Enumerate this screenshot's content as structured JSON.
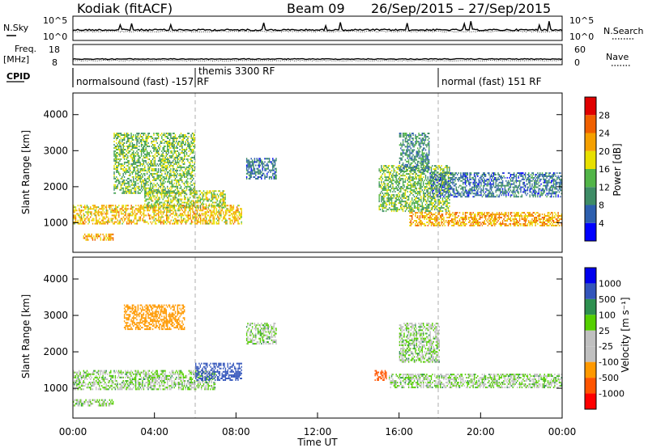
{
  "header": {
    "station": "Kodiak (fitACF)",
    "beam": "Beam 09",
    "dates": "26/Sep/2015 – 27/Sep/2015"
  },
  "strip_labels": {
    "nsky": "N.Sky",
    "nsky_ticks": [
      "10^5",
      "10^0"
    ],
    "nsearch": "N.Search",
    "nsearch_ticks": [
      "10^5",
      "10^0"
    ],
    "freq": "Freq.",
    "freq_unit": "[MHz]",
    "freq_ticks": [
      "18",
      "8"
    ],
    "nave": "Nave",
    "nave_ticks": [
      "60",
      "0"
    ],
    "cpid": "CPID",
    "cpid_segments": [
      {
        "label": "normalsound (fast) -157 RF"
      },
      {
        "label": "themis 3300 RF"
      },
      {
        "label": "normal (fast) 151 RF"
      }
    ]
  },
  "colors": {
    "power_scale": [
      "#0000ff",
      "#2d5fae",
      "#3e8c66",
      "#52b548",
      "#e8e000",
      "#f5a000",
      "#f06000",
      "#e00000"
    ],
    "velocity_scale": [
      "#ff0000",
      "#ff5500",
      "#ff9900",
      "#c0c0c0",
      "#c0c0c0",
      "#55d000",
      "#2e9050",
      "#3355bb",
      "#0000ee"
    ]
  },
  "chart_data": [
    {
      "type": "heatmap",
      "panel": "power",
      "xlabel": "",
      "ylabel": "Slant Range [km]",
      "xlim": [
        0,
        24
      ],
      "ylim": [
        180,
        4600
      ],
      "yticks": [
        "1000",
        "2000",
        "3000",
        "4000"
      ],
      "colorbar_label": "Power [dB]",
      "colorbar_ticks": [
        "4",
        "8",
        "12",
        "16",
        "20",
        "24",
        "28"
      ],
      "colorbar_range": [
        0,
        32
      ],
      "echo_regions": [
        {
          "t0": 0.0,
          "t1": 8.3,
          "r0": 950,
          "r1": 1500,
          "power": 20
        },
        {
          "t0": 3.5,
          "t1": 7.5,
          "r0": 1400,
          "r1": 1900,
          "power": 16
        },
        {
          "t0": 2.0,
          "t1": 6.0,
          "r0": 1800,
          "r1": 3500,
          "power": 14
        },
        {
          "t0": 0.5,
          "t1": 2.0,
          "r0": 500,
          "r1": 700,
          "power": 22
        },
        {
          "t0": 8.5,
          "t1": 10.0,
          "r0": 2200,
          "r1": 2800,
          "power": 8
        },
        {
          "t0": 15.0,
          "t1": 18.5,
          "r0": 1300,
          "r1": 2600,
          "power": 14
        },
        {
          "t0": 16.0,
          "t1": 17.5,
          "r0": 2400,
          "r1": 3500,
          "power": 10
        },
        {
          "t0": 16.5,
          "t1": 24.0,
          "r0": 900,
          "r1": 1300,
          "power": 22
        },
        {
          "t0": 17.5,
          "t1": 24.0,
          "r0": 1700,
          "r1": 2400,
          "power": 8
        }
      ]
    },
    {
      "type": "heatmap",
      "panel": "velocity",
      "xlabel": "Time UT",
      "ylabel": "Slant Range [km]",
      "xlim": [
        0,
        24
      ],
      "ylim": [
        180,
        4600
      ],
      "xticks": [
        "00:00",
        "04:00",
        "08:00",
        "12:00",
        "16:00",
        "20:00",
        "00:00"
      ],
      "yticks": [
        "1000",
        "2000",
        "3000",
        "4000"
      ],
      "colorbar_label": "Velocity [m s⁻¹]",
      "colorbar_ticks": [
        "1000",
        "500",
        "100",
        "25",
        "-25",
        "-100",
        "-500",
        "-1000"
      ],
      "echo_regions": [
        {
          "t0": 0.0,
          "t1": 7.0,
          "r0": 950,
          "r1": 1500,
          "velocity": 0
        },
        {
          "t0": 0.0,
          "t1": 2.0,
          "r0": 500,
          "r1": 700,
          "velocity": 0
        },
        {
          "t0": 2.5,
          "t1": 5.5,
          "r0": 2600,
          "r1": 3300,
          "velocity": -250
        },
        {
          "t0": 6.0,
          "t1": 8.3,
          "r0": 1200,
          "r1": 1700,
          "velocity": 200
        },
        {
          "t0": 8.5,
          "t1": 10.0,
          "r0": 2200,
          "r1": 2800,
          "velocity": 0
        },
        {
          "t0": 15.5,
          "t1": 24.0,
          "r0": 1000,
          "r1": 1400,
          "velocity": 0
        },
        {
          "t0": 16.0,
          "t1": 18.0,
          "r0": 1700,
          "r1": 2800,
          "velocity": 0
        },
        {
          "t0": 14.8,
          "t1": 15.4,
          "r0": 1200,
          "r1": 1500,
          "velocity": -600
        }
      ]
    }
  ]
}
